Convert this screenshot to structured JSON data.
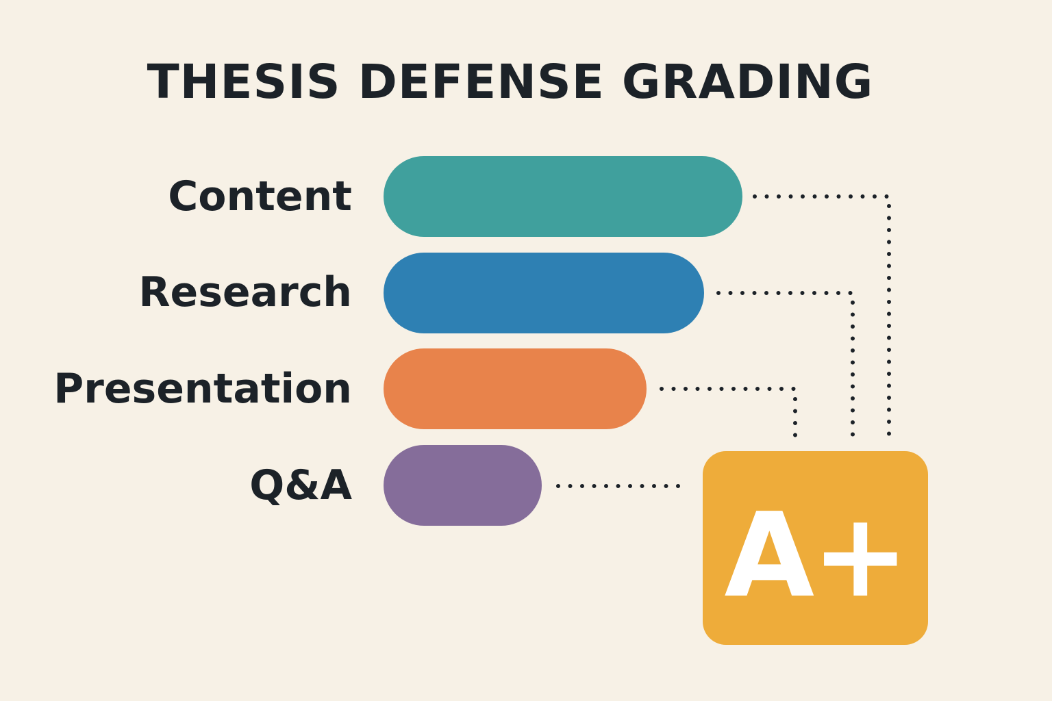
{
  "title": "THESIS DEFENSE GRADING",
  "criteria": [
    {
      "label": "Content",
      "color": "#40a09d"
    },
    {
      "label": "Research",
      "color": "#2e80b3"
    },
    {
      "label": "Presentation",
      "color": "#e8834b"
    },
    {
      "label": "Q&A",
      "color": "#856d9a"
    }
  ],
  "grade": {
    "value": "A+",
    "color": "#eeac3a"
  },
  "connector_style": "dotted"
}
